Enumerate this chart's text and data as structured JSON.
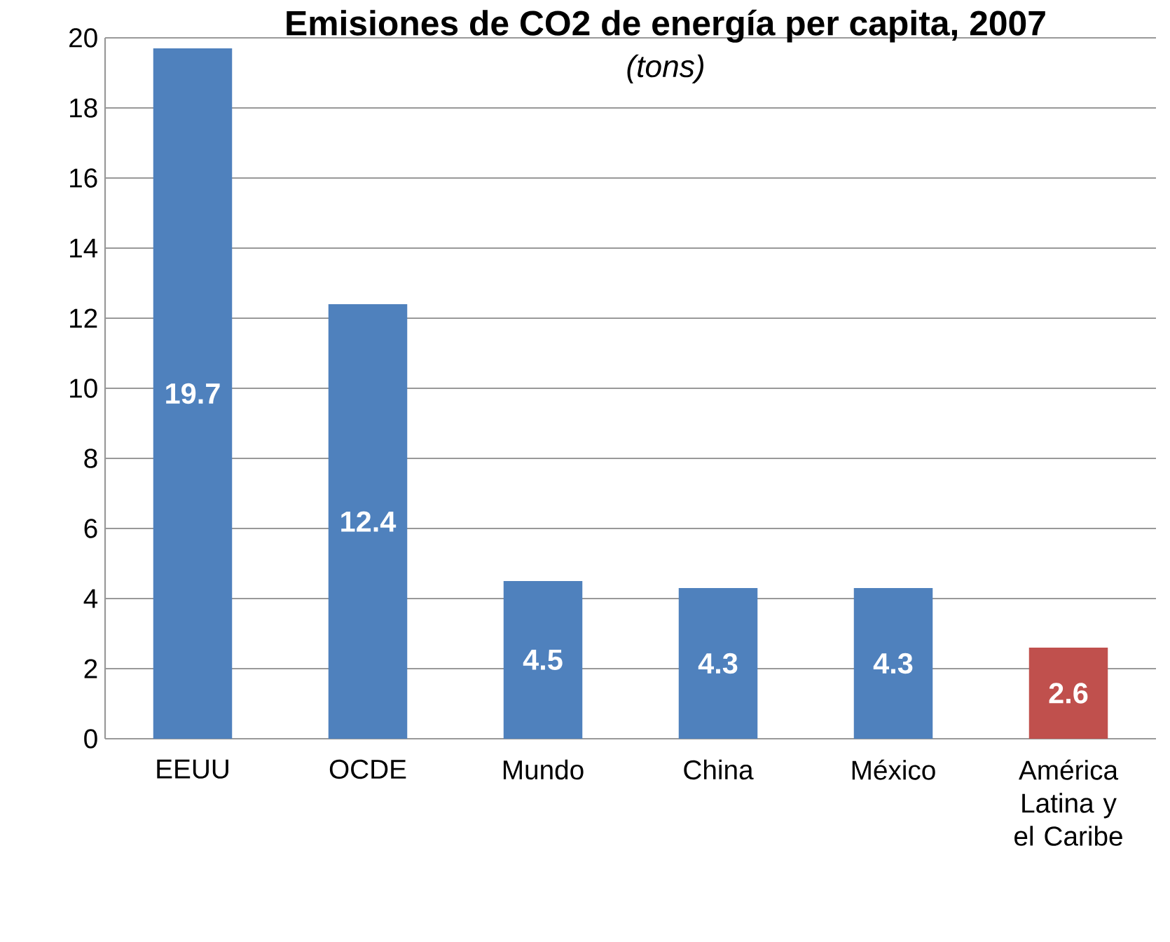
{
  "chart_data": {
    "type": "bar",
    "title": "Emisiones de CO2 de energía per capita, 2007",
    "subtitle": "*(tons)*",
    "categories": [
      "EEUU",
      "OCDE",
      "Mundo",
      "China",
      "México",
      "América Latina y el Caribe"
    ],
    "values": [
      19.7,
      12.4,
      4.5,
      4.3,
      4.3,
      2.6
    ],
    "colors": [
      "#4f81bd",
      "#4f81bd",
      "#4f81bd",
      "#4f81bd",
      "#4f81bd",
      "#c0504d"
    ],
    "ylim": [
      0,
      20
    ],
    "yticks": [
      0,
      2,
      4,
      6,
      8,
      10,
      12,
      14,
      16,
      18,
      20
    ],
    "grid": "y",
    "data_labels": true
  }
}
